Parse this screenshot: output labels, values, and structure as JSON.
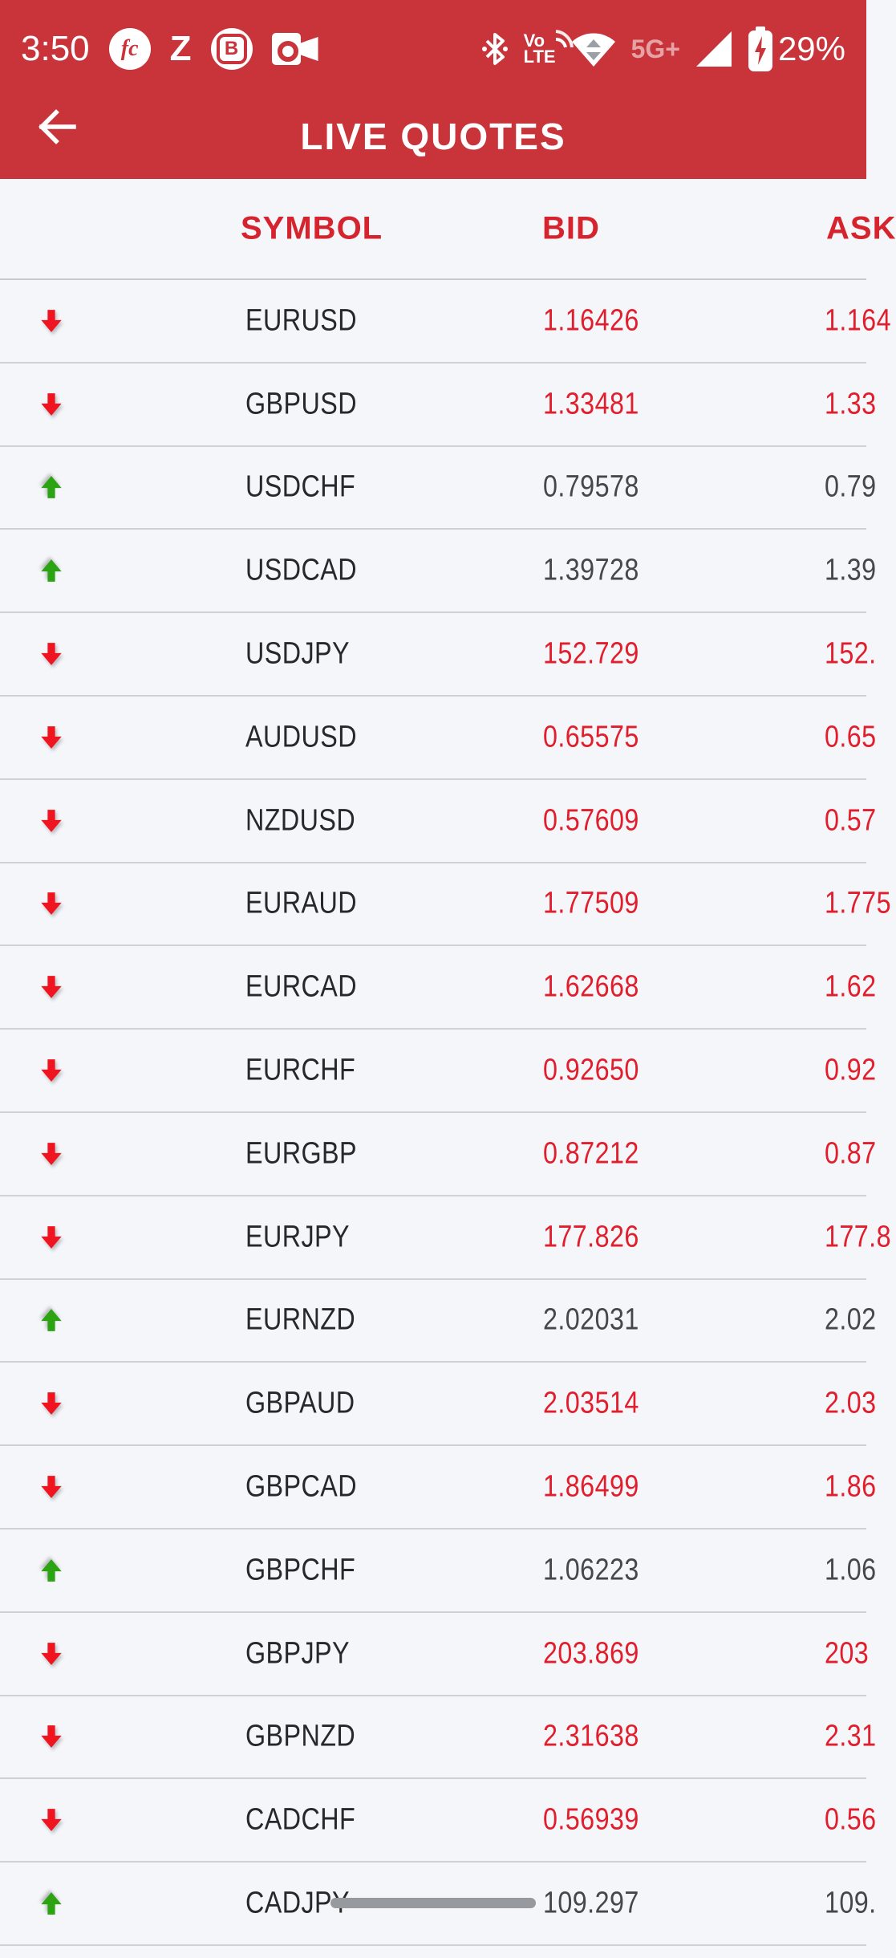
{
  "status_bar": {
    "time": "3:50",
    "fc_badge": "fc",
    "z_badge": "Z",
    "b_badge": "B",
    "volte_top": "Vo",
    "volte_bottom": "LTE",
    "network_label": "5G+",
    "battery_percent": "29%"
  },
  "app_bar": {
    "title": "LIVE QUOTES"
  },
  "quotes_table": {
    "columns": {
      "symbol": "SYMBOL",
      "bid": "BID",
      "ask": "ASK"
    },
    "rows": [
      {
        "symbol": "EURUSD",
        "bid": "1.16426",
        "ask": "1.164",
        "direction": "down"
      },
      {
        "symbol": "GBPUSD",
        "bid": "1.33481",
        "ask": "1.33",
        "direction": "down"
      },
      {
        "symbol": "USDCHF",
        "bid": "0.79578",
        "ask": "0.79",
        "direction": "up"
      },
      {
        "symbol": "USDCAD",
        "bid": "1.39728",
        "ask": "1.39",
        "direction": "up"
      },
      {
        "symbol": "USDJPY",
        "bid": "152.729",
        "ask": "152.",
        "direction": "down"
      },
      {
        "symbol": "AUDUSD",
        "bid": "0.65575",
        "ask": "0.65",
        "direction": "down"
      },
      {
        "symbol": "NZDUSD",
        "bid": "0.57609",
        "ask": "0.57",
        "direction": "down"
      },
      {
        "symbol": "EURAUD",
        "bid": "1.77509",
        "ask": "1.775",
        "direction": "down"
      },
      {
        "symbol": "EURCAD",
        "bid": "1.62668",
        "ask": "1.62",
        "direction": "down"
      },
      {
        "symbol": "EURCHF",
        "bid": "0.92650",
        "ask": "0.92",
        "direction": "down"
      },
      {
        "symbol": "EURGBP",
        "bid": "0.87212",
        "ask": "0.87",
        "direction": "down"
      },
      {
        "symbol": "EURJPY",
        "bid": "177.826",
        "ask": "177.8",
        "direction": "down"
      },
      {
        "symbol": "EURNZD",
        "bid": "2.02031",
        "ask": "2.02",
        "direction": "up"
      },
      {
        "symbol": "GBPAUD",
        "bid": "2.03514",
        "ask": "2.03",
        "direction": "down"
      },
      {
        "symbol": "GBPCAD",
        "bid": "1.86499",
        "ask": "1.86",
        "direction": "down"
      },
      {
        "symbol": "GBPCHF",
        "bid": "1.06223",
        "ask": "1.06",
        "direction": "up"
      },
      {
        "symbol": "GBPJPY",
        "bid": "203.869",
        "ask": "203",
        "direction": "down"
      },
      {
        "symbol": "GBPNZD",
        "bid": "2.31638",
        "ask": "2.31",
        "direction": "down"
      },
      {
        "symbol": "CADCHF",
        "bid": "0.56939",
        "ask": "0.56",
        "direction": "down"
      },
      {
        "symbol": "CADJPY",
        "bid": "109.297",
        "ask": "109.",
        "direction": "up"
      }
    ]
  },
  "colors": {
    "header_bg": "#c8343a",
    "down_text": "#e21e2d",
    "up_text": "#44474c",
    "down_arrow": "#ef1420",
    "up_arrow": "#2ca312",
    "column_header_text": "#d6242f",
    "page_bg": "#f5f6fa"
  }
}
